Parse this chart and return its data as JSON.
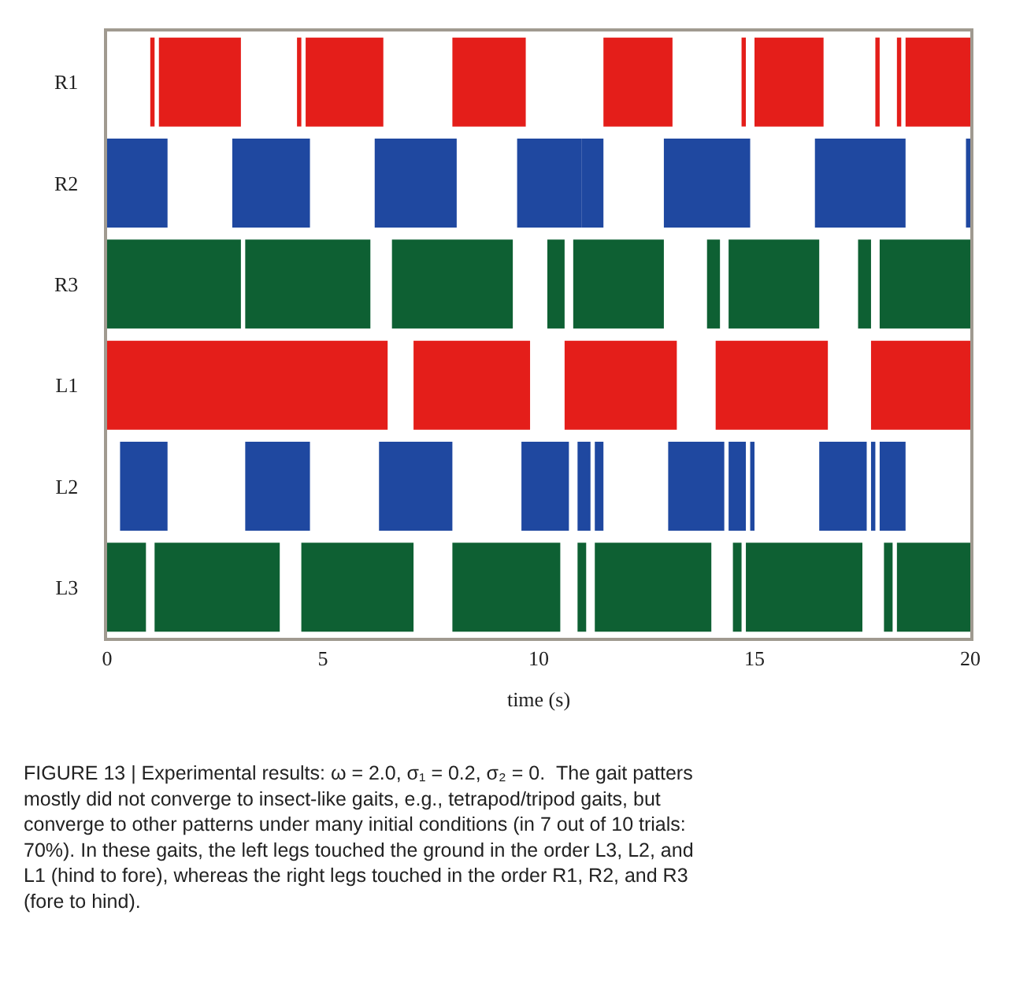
{
  "chart_data": {
    "type": "bar",
    "orientation": "horizontal",
    "xlabel": "time (s)",
    "categories": [
      "R1",
      "R2",
      "R3",
      "L1",
      "L2",
      "L3"
    ],
    "xlim": [
      0,
      20
    ],
    "xticks": [
      0,
      5,
      10,
      15,
      20
    ],
    "series": [
      {
        "colors": [
          "#e41e1a",
          "#1f48a0",
          "#0e6033",
          "#e41e1a",
          "#1f48a0",
          "#0e6033"
        ],
        "base": [
          1.0,
          0,
          0,
          0,
          0.3,
          0
        ],
        "values": [
          0.1,
          1.4,
          3.1,
          6.5,
          1.1,
          0.9
        ]
      },
      {
        "colors": [
          "#e41e1a",
          "#1f48a0",
          "#0e6033",
          "#e41e1a",
          "#1f48a0",
          "#0e6033"
        ],
        "base": [
          1.2,
          2.9,
          3.2,
          7.1,
          3.2,
          1.1
        ],
        "values": [
          1.9,
          1.8,
          2.9,
          2.7,
          1.5,
          2.9
        ]
      },
      {
        "colors": [
          "#e41e1a",
          "#1f48a0",
          "#0e6033",
          "#e41e1a",
          "#1f48a0",
          "#0e6033"
        ],
        "base": [
          4.4,
          6.2,
          6.6,
          10.6,
          6.3,
          4.5
        ],
        "values": [
          0.1,
          1.9,
          2.8,
          2.6,
          1.7,
          2.6
        ]
      },
      {
        "colors": [
          "#e41e1a",
          "#1f48a0",
          "#0e6033",
          "#e41e1a",
          "#1f48a0",
          "#0e6033"
        ],
        "base": [
          4.6,
          9.5,
          10.2,
          14.1,
          9.6,
          8.0
        ],
        "values": [
          1.8,
          1.5,
          0.4,
          2.6,
          1.1,
          2.5
        ]
      },
      {
        "colors": [
          "#e41e1a",
          "#1f48a0",
          "#0e6033",
          "#e41e1a",
          "#1f48a0",
          "#0e6033"
        ],
        "base": [
          8.0,
          11.0,
          10.8,
          17.7,
          10.9,
          10.9
        ],
        "values": [
          1.7,
          0.5,
          2.1,
          2.3,
          0.3,
          0.2
        ]
      },
      {
        "colors": [
          "#e41e1a",
          "#1f48a0",
          "#0e6033",
          "#e41e1a",
          "#1f48a0",
          "#0e6033"
        ],
        "base": [
          11.5,
          12.9,
          13.9,
          null,
          11.3,
          11.3
        ],
        "values": [
          1.6,
          2.0,
          0.3,
          null,
          0.2,
          2.7
        ]
      },
      {
        "colors": [
          "#e41e1a",
          "#1f48a0",
          "#0e6033",
          "#e41e1a",
          "#1f48a0",
          "#0e6033"
        ],
        "base": [
          14.7,
          16.4,
          14.4,
          null,
          13.0,
          14.5
        ],
        "values": [
          0.1,
          2.1,
          2.1,
          null,
          1.3,
          0.2
        ]
      },
      {
        "colors": [
          "#e41e1a",
          "#1f48a0",
          "#0e6033",
          "#e41e1a",
          "#1f48a0",
          "#0e6033"
        ],
        "base": [
          15.0,
          19.9,
          17.4,
          null,
          14.4,
          14.8
        ],
        "values": [
          1.6,
          0.1,
          0.3,
          null,
          0.4,
          2.7
        ]
      },
      {
        "colors": [
          "#e41e1a",
          "#1f48a0",
          "#0e6033",
          "#e41e1a",
          "#1f48a0",
          "#0e6033"
        ],
        "base": [
          17.8,
          null,
          17.9,
          null,
          14.9,
          18.0
        ],
        "values": [
          0.1,
          null,
          2.1,
          null,
          0.1,
          0.2
        ]
      },
      {
        "colors": [
          "#e41e1a",
          "#1f48a0",
          "#0e6033",
          "#e41e1a",
          "#1f48a0",
          "#0e6033"
        ],
        "base": [
          18.3,
          null,
          null,
          null,
          16.5,
          18.3
        ],
        "values": [
          0.1,
          null,
          null,
          null,
          1.1,
          1.7
        ]
      },
      {
        "colors": [
          "#e41e1a",
          "#1f48a0",
          "#0e6033",
          "#e41e1a",
          "#1f48a0",
          "#0e6033"
        ],
        "base": [
          18.5,
          null,
          null,
          null,
          17.7,
          null
        ],
        "values": [
          1.5,
          null,
          null,
          null,
          0.1,
          null
        ]
      },
      {
        "colors": [
          "#e41e1a",
          "#1f48a0",
          "#0e6033",
          "#e41e1a",
          "#1f48a0",
          "#0e6033"
        ],
        "base": [
          null,
          null,
          null,
          null,
          17.9,
          null
        ],
        "values": [
          null,
          null,
          null,
          null,
          0.6,
          null
        ]
      }
    ],
    "annotations": [
      "FIGURE 13 | Experimental results: ω = 2.0, σ₁ = 0.2, σ₂ = 0.  The gait patters mostly did not converge to insect-like gaits, e.g., tetrapod/tripod gaits, but converge to other patterns under many initial conditions (in 7 out of 10 trials: 70%). In these gaits, the left legs touched the ground in the order L3, L2, and L1 (hind to fore), whereas the right legs touched in the order R1, R2, and R3 (fore to hind)."
    ]
  }
}
